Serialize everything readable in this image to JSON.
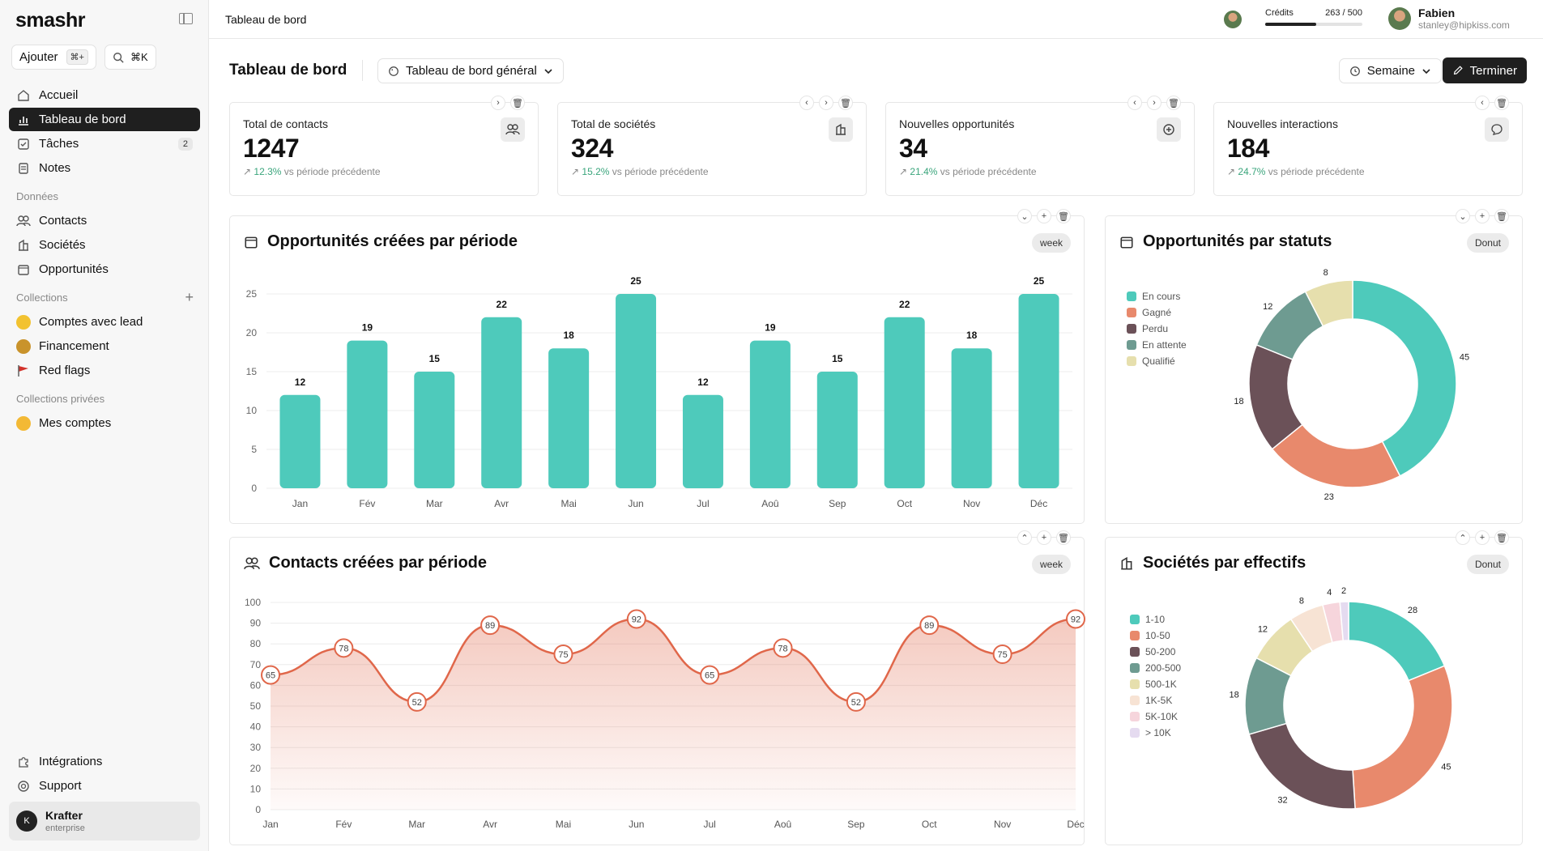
{
  "app": {
    "logo": "smashr",
    "crumb": "Tableau de bord"
  },
  "sidebar": {
    "add_label": "Ajouter",
    "add_kbd": "⌘+",
    "search_kbd": "⌘K",
    "nav": [
      {
        "label": "Accueil",
        "icon": "home-icon"
      },
      {
        "label": "Tableau de bord",
        "icon": "chart-icon",
        "active": true
      },
      {
        "label": "Tâches",
        "icon": "checkbox-icon",
        "count": "2"
      },
      {
        "label": "Notes",
        "icon": "notes-icon"
      }
    ],
    "data_label": "Données",
    "data_items": [
      {
        "label": "Contacts",
        "icon": "users-icon"
      },
      {
        "label": "Sociétés",
        "icon": "building-icon"
      },
      {
        "label": "Opportunités",
        "icon": "folder-icon"
      }
    ],
    "collections_label": "Collections",
    "collections": [
      {
        "label": "Comptes avec lead",
        "emoji_color": "#f2c230"
      },
      {
        "label": "Financement",
        "emoji_color": "#c9932b"
      },
      {
        "label": "Red flags",
        "emoji_color": "#d2322b"
      }
    ],
    "private_label": "Collections privées",
    "private": [
      {
        "label": "Mes comptes",
        "emoji_color": "#f3b935"
      }
    ],
    "footer": [
      {
        "label": "Intégrations",
        "icon": "puzzle-icon"
      },
      {
        "label": "Support",
        "icon": "support-icon"
      }
    ],
    "org": {
      "name": "Krafter",
      "plan": "enterprise"
    }
  },
  "topbar": {
    "credits_label": "Crédits",
    "credits_value": "263 / 500",
    "credits_fraction": 0.526,
    "user_name": "Fabien",
    "user_email": "stanley@hipkiss.com"
  },
  "header": {
    "title": "Tableau de bord",
    "selector": "Tableau de bord général",
    "period": "Semaine",
    "finish": "Terminer"
  },
  "kpis": [
    {
      "title": "Total de contacts",
      "value": "1247",
      "delta": "12.3%",
      "suffix": "vs période précédente",
      "icon": "users-icon"
    },
    {
      "title": "Total de sociétés",
      "value": "324",
      "delta": "15.2%",
      "suffix": "vs période précédente",
      "icon": "building-icon"
    },
    {
      "title": "Nouvelles opportunités",
      "value": "34",
      "delta": "21.4%",
      "suffix": "vs période précédente",
      "icon": "plus-circle-icon"
    },
    {
      "title": "Nouvelles interactions",
      "value": "184",
      "delta": "24.7%",
      "suffix": "vs période précédente",
      "icon": "chat-icon"
    }
  ],
  "panels": {
    "opp_period": {
      "title": "Opportunités créées par période",
      "pill": "week"
    },
    "opp_status": {
      "title": "Opportunités par statuts",
      "pill": "Donut"
    },
    "contacts_period": {
      "title": "Contacts créées par période",
      "pill": "week"
    },
    "companies_size": {
      "title": "Sociétés par effectifs",
      "pill": "Donut"
    }
  },
  "chart_data": [
    {
      "type": "bar",
      "categories": [
        "Jan",
        "Fév",
        "Mar",
        "Avr",
        "Mai",
        "Jun",
        "Jul",
        "Aoû",
        "Sep",
        "Oct",
        "Nov",
        "Déc"
      ],
      "values": [
        12,
        19,
        15,
        22,
        18,
        25,
        12,
        19,
        15,
        22,
        18,
        25
      ],
      "ylim": [
        0,
        25
      ],
      "yticks": [
        0,
        5,
        10,
        15,
        20,
        25
      ],
      "color": "#4ecabb"
    },
    {
      "type": "pie",
      "donut": true,
      "labels": [
        "En cours",
        "Gagné",
        "Perdu",
        "En attente",
        "Qualifié"
      ],
      "values": [
        45,
        23,
        18,
        12,
        8
      ],
      "colors": [
        "#4ecabb",
        "#e8896c",
        "#6b5158",
        "#6e9b91",
        "#e6dfad"
      ]
    },
    {
      "type": "area",
      "categories": [
        "Jan",
        "Fév",
        "Mar",
        "Avr",
        "Mai",
        "Jun",
        "Jul",
        "Aoû",
        "Sep",
        "Oct",
        "Nov",
        "Déc"
      ],
      "values": [
        65,
        78,
        52,
        89,
        75,
        92,
        65,
        78,
        52,
        89,
        75,
        92
      ],
      "ylim": [
        0,
        100
      ],
      "yticks": [
        0,
        10,
        20,
        30,
        40,
        50,
        60,
        70,
        80,
        90,
        100
      ],
      "color": "#e0674a"
    },
    {
      "type": "pie",
      "donut": true,
      "labels": [
        "1-10",
        "10-50",
        "50-200",
        "200-500",
        "500-1K",
        "1K-5K",
        "5K-10K",
        "> 10K"
      ],
      "values": [
        28,
        45,
        32,
        18,
        12,
        8,
        4,
        2
      ],
      "colors": [
        "#4ecabb",
        "#e8896c",
        "#6b5158",
        "#6e9b91",
        "#e6dfad",
        "#f7e3d4",
        "#f6d5dc",
        "#e5dbf0"
      ]
    }
  ]
}
